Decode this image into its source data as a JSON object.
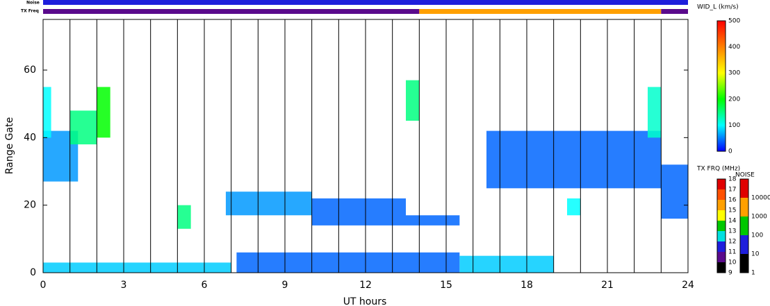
{
  "chart_data": {
    "type": "range-time",
    "xlabel": "UT hours",
    "ylabel": "Range Gate",
    "xlim": [
      0,
      24
    ],
    "ylim": [
      0,
      75
    ],
    "xticks": [
      0,
      3,
      6,
      9,
      12,
      15,
      18,
      21,
      24
    ],
    "yticks": [
      0,
      20,
      40,
      60
    ],
    "hour_lines": [
      1,
      2,
      3,
      4,
      5,
      6,
      7,
      8,
      9,
      10,
      11,
      12,
      13,
      14,
      15,
      16,
      17,
      18,
      19,
      20,
      21,
      22,
      23
    ],
    "noise_label": "Noise",
    "txfreq_label": "TX Freq",
    "noise": [
      {
        "start": 0,
        "end": 24,
        "value": 30
      }
    ],
    "tx_freq": [
      {
        "start": 0,
        "end": 14,
        "value": 10.5
      },
      {
        "start": 14,
        "end": 23,
        "value": 15.3
      },
      {
        "start": 23,
        "end": 24,
        "value": 10.5
      }
    ],
    "echoes": [
      {
        "hours": [
          0,
          1.3
        ],
        "gates": [
          27,
          42
        ],
        "width": 60
      },
      {
        "hours": [
          0,
          0.3
        ],
        "gates": [
          40,
          55
        ],
        "width": 100
      },
      {
        "hours": [
          1,
          2
        ],
        "gates": [
          38,
          48
        ],
        "width": 150
      },
      {
        "hours": [
          2,
          2.5
        ],
        "gates": [
          40,
          55
        ],
        "width": 200
      },
      {
        "hours": [
          5,
          5.5
        ],
        "gates": [
          13,
          20
        ],
        "width": 150
      },
      {
        "hours": [
          6.8,
          10
        ],
        "gates": [
          17,
          24
        ],
        "width": 60
      },
      {
        "hours": [
          10,
          13.5
        ],
        "gates": [
          14,
          22
        ],
        "width": 40
      },
      {
        "hours": [
          13.5,
          15.5
        ],
        "gates": [
          14,
          17
        ],
        "width": 40
      },
      {
        "hours": [
          0,
          7
        ],
        "gates": [
          0,
          3
        ],
        "width": 80
      },
      {
        "hours": [
          7.2,
          15.5
        ],
        "gates": [
          0,
          6
        ],
        "width": 40
      },
      {
        "hours": [
          15.5,
          19
        ],
        "gates": [
          0,
          5
        ],
        "width": 80
      },
      {
        "hours": [
          13.5,
          14
        ],
        "gates": [
          45,
          57
        ],
        "width": 150
      },
      {
        "hours": [
          16.5,
          23
        ],
        "gates": [
          25,
          42
        ],
        "width": 40
      },
      {
        "hours": [
          22.5,
          23
        ],
        "gates": [
          40,
          55
        ],
        "width": 120
      },
      {
        "hours": [
          23,
          24
        ],
        "gates": [
          16,
          32
        ],
        "width": 40
      },
      {
        "hours": [
          19.5,
          20
        ],
        "gates": [
          17,
          22
        ],
        "width": 100
      }
    ],
    "width_colorbar": {
      "title": "WID_L (km/s)",
      "lim": [
        0,
        500
      ],
      "ticks": [
        0,
        100,
        200,
        300,
        400,
        500
      ],
      "colors": [
        "#0000ff",
        "#00ffff",
        "#00ff00",
        "#ffff00",
        "#ff8000",
        "#ff0000"
      ]
    },
    "freq_colorbar": {
      "title": "TX FRQ (MHz)",
      "lim": [
        9,
        18
      ],
      "ticks": [
        9,
        10,
        11,
        12,
        13,
        14,
        15,
        16,
        17,
        18
      ],
      "colors": [
        "#000000",
        "#5a0a8c",
        "#1e1edc",
        "#00e0e0",
        "#00c800",
        "#ffff00",
        "#ffa000",
        "#ff5000",
        "#e00000"
      ]
    },
    "noise_colorbar": {
      "title": "NOISE",
      "log": true,
      "lim": [
        1,
        100000
      ],
      "ticks": [
        1,
        10,
        100,
        1000,
        10000
      ],
      "colors": [
        "#000000",
        "#1e1edc",
        "#00c800",
        "#ffa000",
        "#e00000"
      ]
    }
  }
}
